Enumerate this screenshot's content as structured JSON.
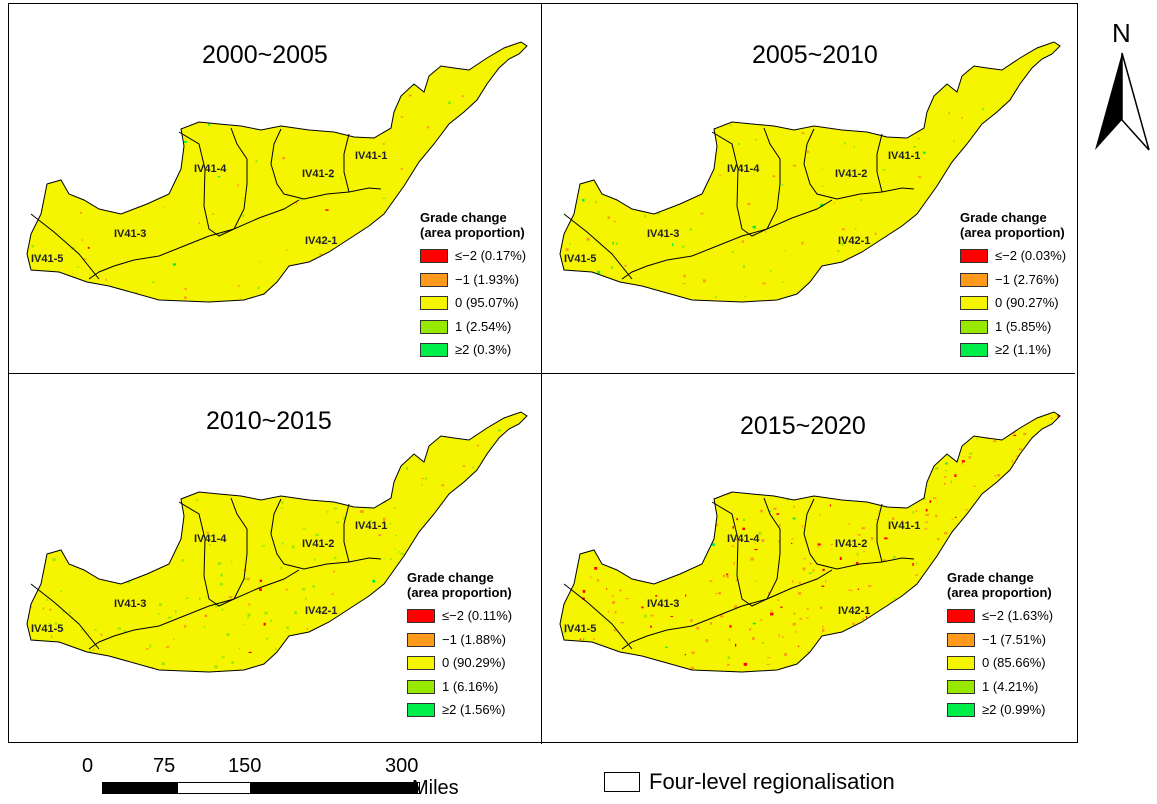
{
  "colors": {
    "red": "#ff0000",
    "orange": "#ff9a1c",
    "yellow": "#f5f500",
    "light_green": "#98e800",
    "green": "#00ee4a"
  },
  "panels": [
    {
      "title": "2000~2005",
      "legend_title_1": "Grade change",
      "legend_title_2": "(area proportion)",
      "legend": [
        {
          "label": "≤−2 (0.17%)",
          "color": "red"
        },
        {
          "label": "−1 (1.93%)",
          "color": "orange"
        },
        {
          "label": "0 (95.07%)",
          "color": "yellow"
        },
        {
          "label": "1 (2.54%)",
          "color": "light_green"
        },
        {
          "label": "≥2 (0.3%)",
          "color": "green"
        }
      ],
      "regions": [
        "IV41-4",
        "IV41-2",
        "IV41-1",
        "IV41-3",
        "IV42-1",
        "IV41-5"
      ]
    },
    {
      "title": "2005~2010",
      "legend_title_1": "Grade change",
      "legend_title_2": "(area proportion)",
      "legend": [
        {
          "label": "≤−2 (0.03%)",
          "color": "red"
        },
        {
          "label": "−1 (2.76%)",
          "color": "orange"
        },
        {
          "label": "0 (90.27%)",
          "color": "yellow"
        },
        {
          "label": "1 (5.85%)",
          "color": "light_green"
        },
        {
          "label": "≥2 (1.1%)",
          "color": "green"
        }
      ],
      "regions": [
        "IV41-4",
        "IV41-2",
        "IV41-1",
        "IV41-3",
        "IV42-1",
        "IV41-5"
      ]
    },
    {
      "title": "2010~2015",
      "legend_title_1": "Grade change",
      "legend_title_2": "(area proportion)",
      "legend": [
        {
          "label": "≤−2 (0.11%)",
          "color": "red"
        },
        {
          "label": "−1 (1.88%)",
          "color": "orange"
        },
        {
          "label": "0 (90.29%)",
          "color": "yellow"
        },
        {
          "label": "1 (6.16%)",
          "color": "light_green"
        },
        {
          "label": "≥2 (1.56%)",
          "color": "green"
        }
      ],
      "regions": [
        "IV41-4",
        "IV41-2",
        "IV41-1",
        "IV41-3",
        "IV42-1",
        "IV41-5"
      ]
    },
    {
      "title": "2015~2020",
      "legend_title_1": "Grade change",
      "legend_title_2": "(area proportion)",
      "legend": [
        {
          "label": "≤−2 (1.63%)",
          "color": "red"
        },
        {
          "label": "−1 (7.51%)",
          "color": "orange"
        },
        {
          "label": "0 (85.66%)",
          "color": "yellow"
        },
        {
          "label": "1 (4.21%)",
          "color": "light_green"
        },
        {
          "label": "≥2 (0.99%)",
          "color": "green"
        }
      ],
      "regions": [
        "IV41-4",
        "IV41-2",
        "IV41-1",
        "IV41-3",
        "IV42-1",
        "IV41-5"
      ]
    }
  ],
  "north_arrow": {
    "label": "N",
    "icon": "north-arrow-icon"
  },
  "scale_bar": {
    "ticks": [
      "0",
      "75",
      "150",
      "300"
    ],
    "units": "Miles"
  },
  "region_legend": {
    "label": "Four-level regionalisation"
  }
}
